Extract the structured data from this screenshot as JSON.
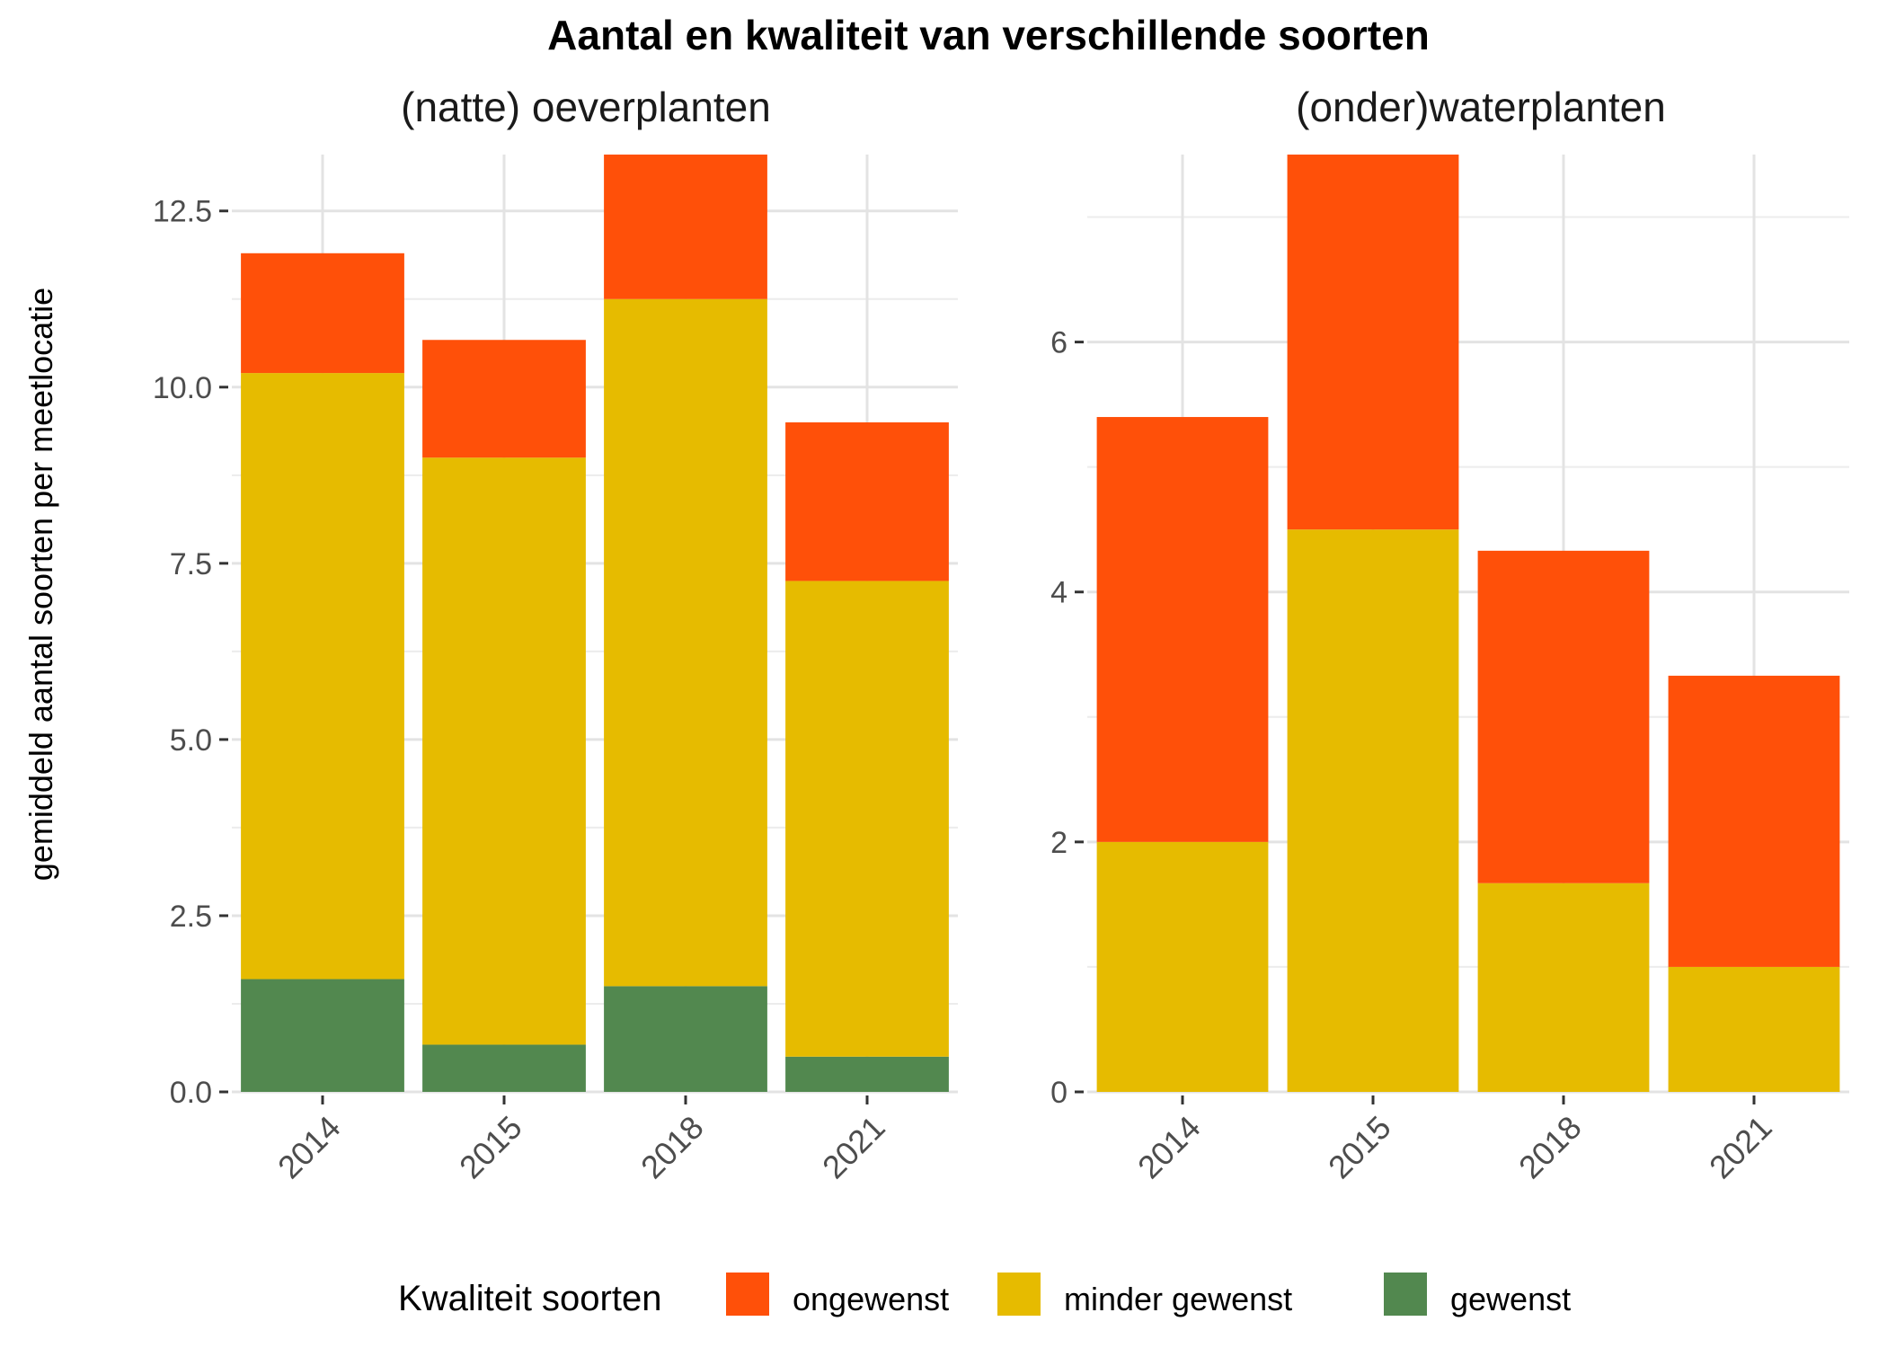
{
  "title": "Aantal en kwaliteit van verschillende soorten",
  "ylabel": "gemiddeld aantal soorten per meetlocatie",
  "legend": {
    "title": "Kwaliteit soorten",
    "position": "bottom",
    "items": [
      {
        "name": "ongewenst",
        "color": "#FF5009"
      },
      {
        "name": "minder gewenst",
        "color": "#E6BB00"
      },
      {
        "name": "gewenst",
        "color": "#52884F"
      }
    ]
  },
  "chart_data": [
    {
      "type": "bar",
      "stacked": true,
      "title": "(natte) oeverplanten",
      "categories": [
        "2014",
        "2015",
        "2018",
        "2021"
      ],
      "ylim": [
        0,
        13.3
      ],
      "yticks": [
        0.0,
        2.5,
        5.0,
        7.5,
        10.0,
        12.5
      ],
      "ytick_labels": [
        "0.0",
        "2.5",
        "5.0",
        "7.5",
        "10.0",
        "12.5"
      ],
      "grid": true,
      "series": [
        {
          "name": "gewenst",
          "color": "#52884F",
          "values": [
            1.6,
            0.67,
            1.5,
            0.5
          ]
        },
        {
          "name": "minder gewenst",
          "color": "#E6BB00",
          "values": [
            8.6,
            8.33,
            9.75,
            6.75
          ]
        },
        {
          "name": "ongewenst",
          "color": "#FF5009",
          "values": [
            1.7,
            1.67,
            2.05,
            2.25
          ]
        }
      ]
    },
    {
      "type": "bar",
      "stacked": true,
      "title": "(onder)waterplanten",
      "categories": [
        "2014",
        "2015",
        "2018",
        "2021"
      ],
      "ylim": [
        0,
        7.5
      ],
      "yticks": [
        0,
        2,
        4,
        6
      ],
      "ytick_labels": [
        "0",
        "2",
        "4",
        "6"
      ],
      "grid": true,
      "series": [
        {
          "name": "gewenst",
          "color": "#52884F",
          "values": [
            0,
            0,
            0,
            0
          ]
        },
        {
          "name": "minder gewenst",
          "color": "#E6BB00",
          "values": [
            2.0,
            4.5,
            1.67,
            1.0
          ]
        },
        {
          "name": "ongewenst",
          "color": "#FF5009",
          "values": [
            3.4,
            3.0,
            2.66,
            2.33
          ]
        }
      ]
    }
  ]
}
